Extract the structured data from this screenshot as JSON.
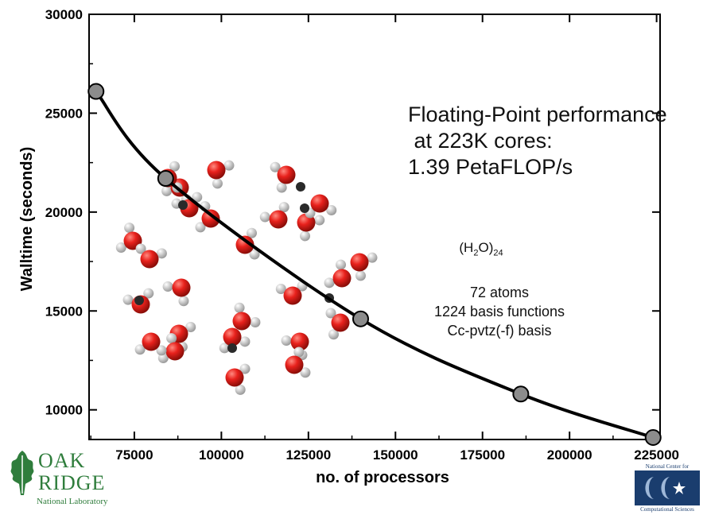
{
  "chart_data": {
    "type": "line",
    "xlabel": "no. of processors",
    "ylabel": "Walltime (seconds)",
    "xlim": [
      62000,
      226000
    ],
    "ylim": [
      8500,
      30000
    ],
    "xticks": [
      75000,
      100000,
      125000,
      150000,
      175000,
      200000,
      225000
    ],
    "yticks": [
      10000,
      15000,
      20000,
      25000,
      30000
    ],
    "grid": false,
    "series": [
      {
        "x": [
          64000,
          84000,
          140000,
          186000,
          224000
        ],
        "y": [
          26100,
          21700,
          14600,
          10800,
          8600
        ],
        "color": "#000000",
        "marker_color": "#8c8c8c"
      }
    ]
  },
  "annotation": {
    "lines": [
      "Floating-Point performance",
      " at 223K cores:",
      "1.39 PetaFLOP/s"
    ]
  },
  "molecule": {
    "formula_main": "(H",
    "formula_sub1": "2",
    "formula_mid": "O)",
    "formula_sub2": "24"
  },
  "details": [
    "72 atoms",
    "1224 basis functions",
    "Cc-pvtz(-f) basis"
  ],
  "logos": {
    "ornl_line1": "OAK",
    "ornl_line2": "RIDGE",
    "ornl_line3": "National Laboratory",
    "nccs_top": "National Center for",
    "nccs_bottom": "Computational Sciences"
  },
  "colors": {
    "oxygen": "#e8211c",
    "hydrogen": "#f2f2f2",
    "ornl_green": "#2f7d3c",
    "nccs_blue": "#1a3d6e"
  }
}
